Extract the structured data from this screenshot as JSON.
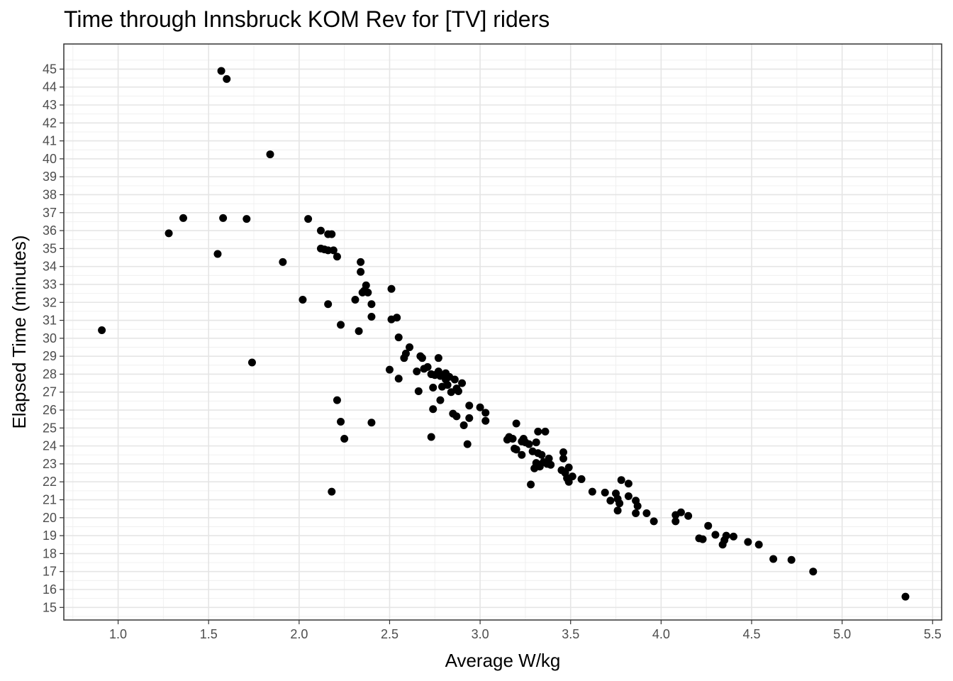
{
  "chart_data": {
    "type": "scatter",
    "title": "Time through Innsbruck KOM Rev for [TV] riders",
    "xlabel": "Average W/kg",
    "ylabel": "Elapsed Time (minutes)",
    "xlim": [
      0.7,
      5.55
    ],
    "ylim": [
      14.3,
      46.4
    ],
    "x_ticks": [
      1.0,
      1.5,
      2.0,
      2.5,
      3.0,
      3.5,
      4.0,
      4.5,
      5.0,
      5.5
    ],
    "x_tick_labels": [
      "1.0",
      "1.5",
      "2.0",
      "2.5",
      "3.0",
      "3.5",
      "4.0",
      "4.5",
      "5.0",
      "5.5"
    ],
    "y_ticks": [
      15,
      16,
      17,
      18,
      19,
      20,
      21,
      22,
      23,
      24,
      25,
      26,
      27,
      28,
      29,
      30,
      31,
      32,
      33,
      34,
      35,
      36,
      37,
      38,
      39,
      40,
      41,
      42,
      43,
      44,
      45
    ],
    "y_tick_labels": [
      "15",
      "16",
      "17",
      "18",
      "19",
      "20",
      "21",
      "22",
      "23",
      "24",
      "25",
      "26",
      "27",
      "28",
      "29",
      "30",
      "31",
      "32",
      "33",
      "34",
      "35",
      "36",
      "37",
      "38",
      "39",
      "40",
      "41",
      "42",
      "43",
      "44",
      "45"
    ],
    "grid": true,
    "legend": "none",
    "point_color": "#000000",
    "points": [
      [
        0.91,
        30.45
      ],
      [
        1.28,
        35.85
      ],
      [
        1.36,
        36.7
      ],
      [
        1.55,
        34.7
      ],
      [
        1.57,
        44.9
      ],
      [
        1.58,
        36.7
      ],
      [
        1.6,
        44.45
      ],
      [
        1.71,
        36.65
      ],
      [
        1.74,
        28.65
      ],
      [
        1.84,
        40.25
      ],
      [
        1.91,
        34.25
      ],
      [
        2.02,
        32.15
      ],
      [
        2.05,
        36.65
      ],
      [
        2.12,
        36.0
      ],
      [
        2.12,
        35.0
      ],
      [
        2.14,
        34.95
      ],
      [
        2.16,
        35.8
      ],
      [
        2.16,
        34.9
      ],
      [
        2.16,
        31.9
      ],
      [
        2.18,
        35.8
      ],
      [
        2.18,
        21.45
      ],
      [
        2.19,
        34.9
      ],
      [
        2.21,
        34.55
      ],
      [
        2.21,
        26.55
      ],
      [
        2.23,
        30.75
      ],
      [
        2.23,
        25.35
      ],
      [
        2.25,
        24.4
      ],
      [
        2.31,
        32.15
      ],
      [
        2.33,
        30.4
      ],
      [
        2.34,
        34.25
      ],
      [
        2.34,
        33.7
      ],
      [
        2.35,
        32.55
      ],
      [
        2.36,
        32.65
      ],
      [
        2.37,
        32.95
      ],
      [
        2.38,
        32.55
      ],
      [
        2.4,
        31.9
      ],
      [
        2.4,
        31.2
      ],
      [
        2.4,
        25.3
      ],
      [
        2.5,
        28.25
      ],
      [
        2.51,
        32.75
      ],
      [
        2.51,
        31.05
      ],
      [
        2.54,
        31.15
      ],
      [
        2.55,
        30.05
      ],
      [
        2.55,
        27.75
      ],
      [
        2.58,
        28.9
      ],
      [
        2.59,
        29.15
      ],
      [
        2.61,
        29.5
      ],
      [
        2.65,
        28.15
      ],
      [
        2.66,
        27.05
      ],
      [
        2.67,
        29.0
      ],
      [
        2.68,
        28.9
      ],
      [
        2.69,
        28.3
      ],
      [
        2.71,
        28.4
      ],
      [
        2.73,
        24.5
      ],
      [
        2.73,
        28.0
      ],
      [
        2.74,
        27.25
      ],
      [
        2.74,
        26.05
      ],
      [
        2.75,
        27.95
      ],
      [
        2.76,
        28.0
      ],
      [
        2.77,
        28.15
      ],
      [
        2.77,
        28.9
      ],
      [
        2.78,
        27.9
      ],
      [
        2.78,
        26.55
      ],
      [
        2.79,
        27.3
      ],
      [
        2.81,
        28.05
      ],
      [
        2.81,
        27.7
      ],
      [
        2.82,
        27.4
      ],
      [
        2.83,
        27.85
      ],
      [
        2.84,
        27.0
      ],
      [
        2.85,
        25.8
      ],
      [
        2.86,
        27.7
      ],
      [
        2.87,
        25.65
      ],
      [
        2.87,
        27.2
      ],
      [
        2.88,
        27.05
      ],
      [
        2.9,
        27.5
      ],
      [
        2.91,
        25.15
      ],
      [
        2.93,
        24.1
      ],
      [
        2.94,
        26.25
      ],
      [
        2.94,
        25.55
      ],
      [
        3.0,
        26.15
      ],
      [
        3.03,
        25.85
      ],
      [
        3.03,
        25.4
      ],
      [
        3.15,
        24.35
      ],
      [
        3.16,
        24.5
      ],
      [
        3.18,
        24.4
      ],
      [
        3.19,
        23.85
      ],
      [
        3.2,
        25.25
      ],
      [
        3.2,
        23.8
      ],
      [
        3.23,
        24.25
      ],
      [
        3.23,
        23.5
      ],
      [
        3.24,
        24.4
      ],
      [
        3.25,
        24.2
      ],
      [
        3.27,
        24.1
      ],
      [
        3.28,
        21.85
      ],
      [
        3.29,
        23.7
      ],
      [
        3.3,
        22.75
      ],
      [
        3.31,
        24.2
      ],
      [
        3.31,
        23.05
      ],
      [
        3.32,
        24.8
      ],
      [
        3.32,
        23.6
      ],
      [
        3.33,
        22.85
      ],
      [
        3.34,
        23.5
      ],
      [
        3.35,
        23.1
      ],
      [
        3.36,
        24.8
      ],
      [
        3.37,
        23.0
      ],
      [
        3.38,
        23.3
      ],
      [
        3.39,
        22.95
      ],
      [
        3.45,
        22.65
      ],
      [
        3.46,
        23.65
      ],
      [
        3.46,
        23.3
      ],
      [
        3.47,
        22.5
      ],
      [
        3.48,
        22.2
      ],
      [
        3.49,
        22.8
      ],
      [
        3.49,
        22.0
      ],
      [
        3.51,
        22.3
      ],
      [
        3.56,
        22.15
      ],
      [
        3.62,
        21.45
      ],
      [
        3.69,
        21.4
      ],
      [
        3.72,
        20.95
      ],
      [
        3.75,
        21.35
      ],
      [
        3.76,
        21.05
      ],
      [
        3.76,
        20.4
      ],
      [
        3.77,
        20.8
      ],
      [
        3.78,
        22.1
      ],
      [
        3.82,
        21.2
      ],
      [
        3.82,
        21.9
      ],
      [
        3.86,
        20.25
      ],
      [
        3.86,
        20.95
      ],
      [
        3.87,
        20.65
      ],
      [
        3.92,
        20.25
      ],
      [
        3.96,
        19.8
      ],
      [
        4.08,
        20.15
      ],
      [
        4.08,
        19.8
      ],
      [
        4.11,
        20.3
      ],
      [
        4.15,
        20.1
      ],
      [
        4.21,
        18.85
      ],
      [
        4.23,
        18.8
      ],
      [
        4.26,
        19.55
      ],
      [
        4.3,
        19.05
      ],
      [
        4.34,
        18.5
      ],
      [
        4.35,
        18.75
      ],
      [
        4.36,
        19.0
      ],
      [
        4.4,
        18.95
      ],
      [
        4.48,
        18.65
      ],
      [
        4.54,
        18.5
      ],
      [
        4.62,
        17.7
      ],
      [
        4.72,
        17.65
      ],
      [
        4.84,
        17.0
      ],
      [
        5.35,
        15.6
      ]
    ]
  }
}
